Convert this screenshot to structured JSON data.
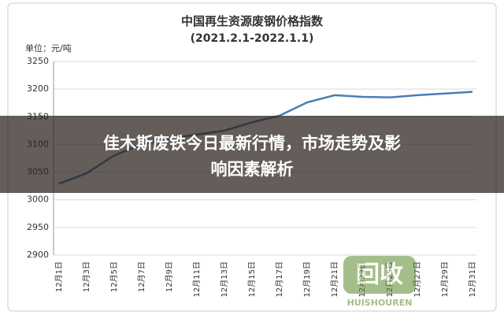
{
  "chart_data": {
    "type": "line",
    "title": "中国再生资源废钢价格指数",
    "subtitle": "(2021.2.1-2022.1.1)",
    "unit_label": "单位：元/吨",
    "categories": [
      "12月1日",
      "12月3日",
      "12月5日",
      "12月7日",
      "12月9日",
      "12月11日",
      "12月13日",
      "12月15日",
      "12月17日",
      "12月19日",
      "12月21日",
      "12月23日",
      "12月25日",
      "12月27日",
      "12月29日",
      "12月31日"
    ],
    "series": [
      {
        "color": "#4a7db4",
        "values": [
          3029,
          3048,
          3080,
          3100,
          3110,
          3118,
          3125,
          3140,
          3152,
          3176,
          3189,
          3186,
          3185,
          3189,
          3192,
          3195
        ]
      }
    ],
    "ylim": [
      2900,
      3250
    ],
    "yticks": [
      2900,
      2950,
      3000,
      3050,
      3100,
      3150,
      3200,
      3250
    ],
    "grid": true
  },
  "overlay": {
    "headline_lines": [
      "佳木斯废铁今日最新行情，市场走势及影",
      "响因素解析"
    ]
  },
  "watermark": {
    "logo": "回收",
    "text": "HUISHOUREN"
  }
}
